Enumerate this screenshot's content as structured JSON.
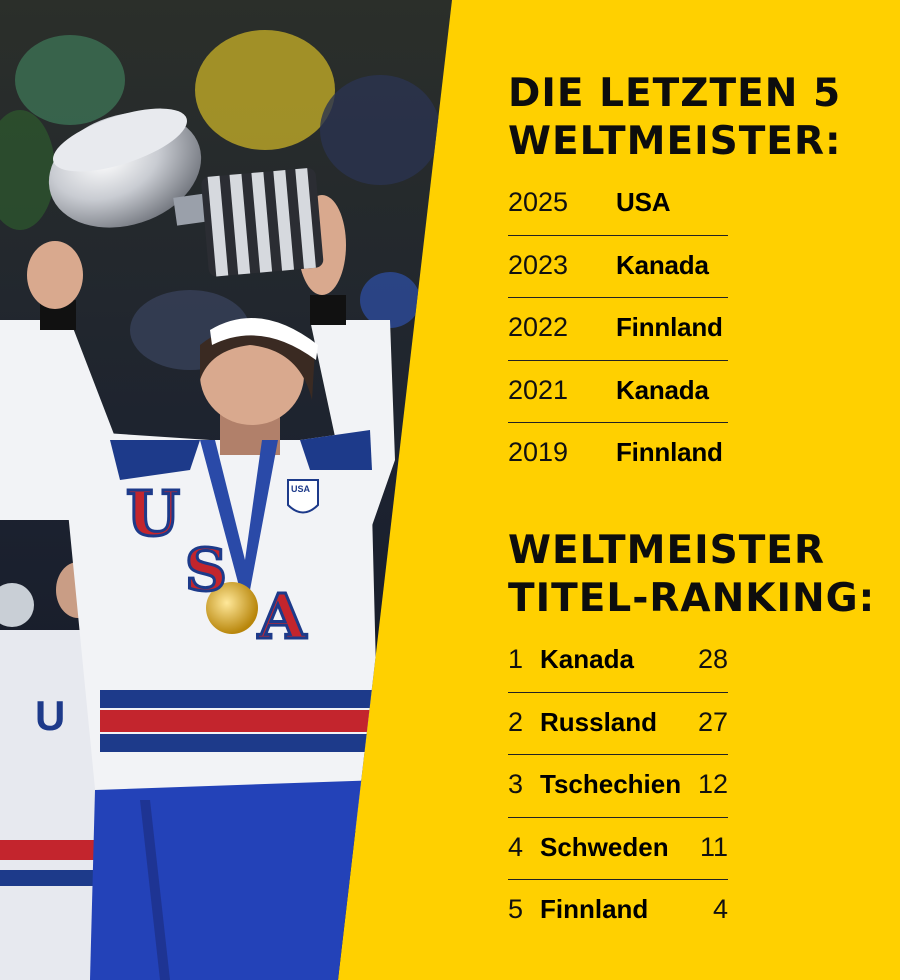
{
  "section1": {
    "title_line1": "DIE LETZTEN 5",
    "title_line2": "WELTMEISTER:",
    "rows": [
      {
        "year": "2025",
        "country": "USA"
      },
      {
        "year": "2023",
        "country": "Kanada"
      },
      {
        "year": "2022",
        "country": "Finnland"
      },
      {
        "year": "2021",
        "country": "Kanada"
      },
      {
        "year": "2019",
        "country": "Finnland"
      }
    ]
  },
  "section2": {
    "title_line1": "WELTMEISTER",
    "title_line2": "TITEL-RANKING:",
    "rows": [
      {
        "rank": "1",
        "country": "Kanada",
        "titles": "28"
      },
      {
        "rank": "2",
        "country": "Russland",
        "titles": "27"
      },
      {
        "rank": "3",
        "country": "Tschechien",
        "titles": "12"
      },
      {
        "rank": "4",
        "country": "Schweden",
        "titles": "11"
      },
      {
        "rank": "5",
        "country": "Finnland",
        "titles": "4"
      }
    ]
  },
  "photo": {
    "jersey_text_1": "U",
    "jersey_text_2": "S",
    "jersey_text_3": "A",
    "patch_text": "USA",
    "background_color": "#FFD000"
  }
}
